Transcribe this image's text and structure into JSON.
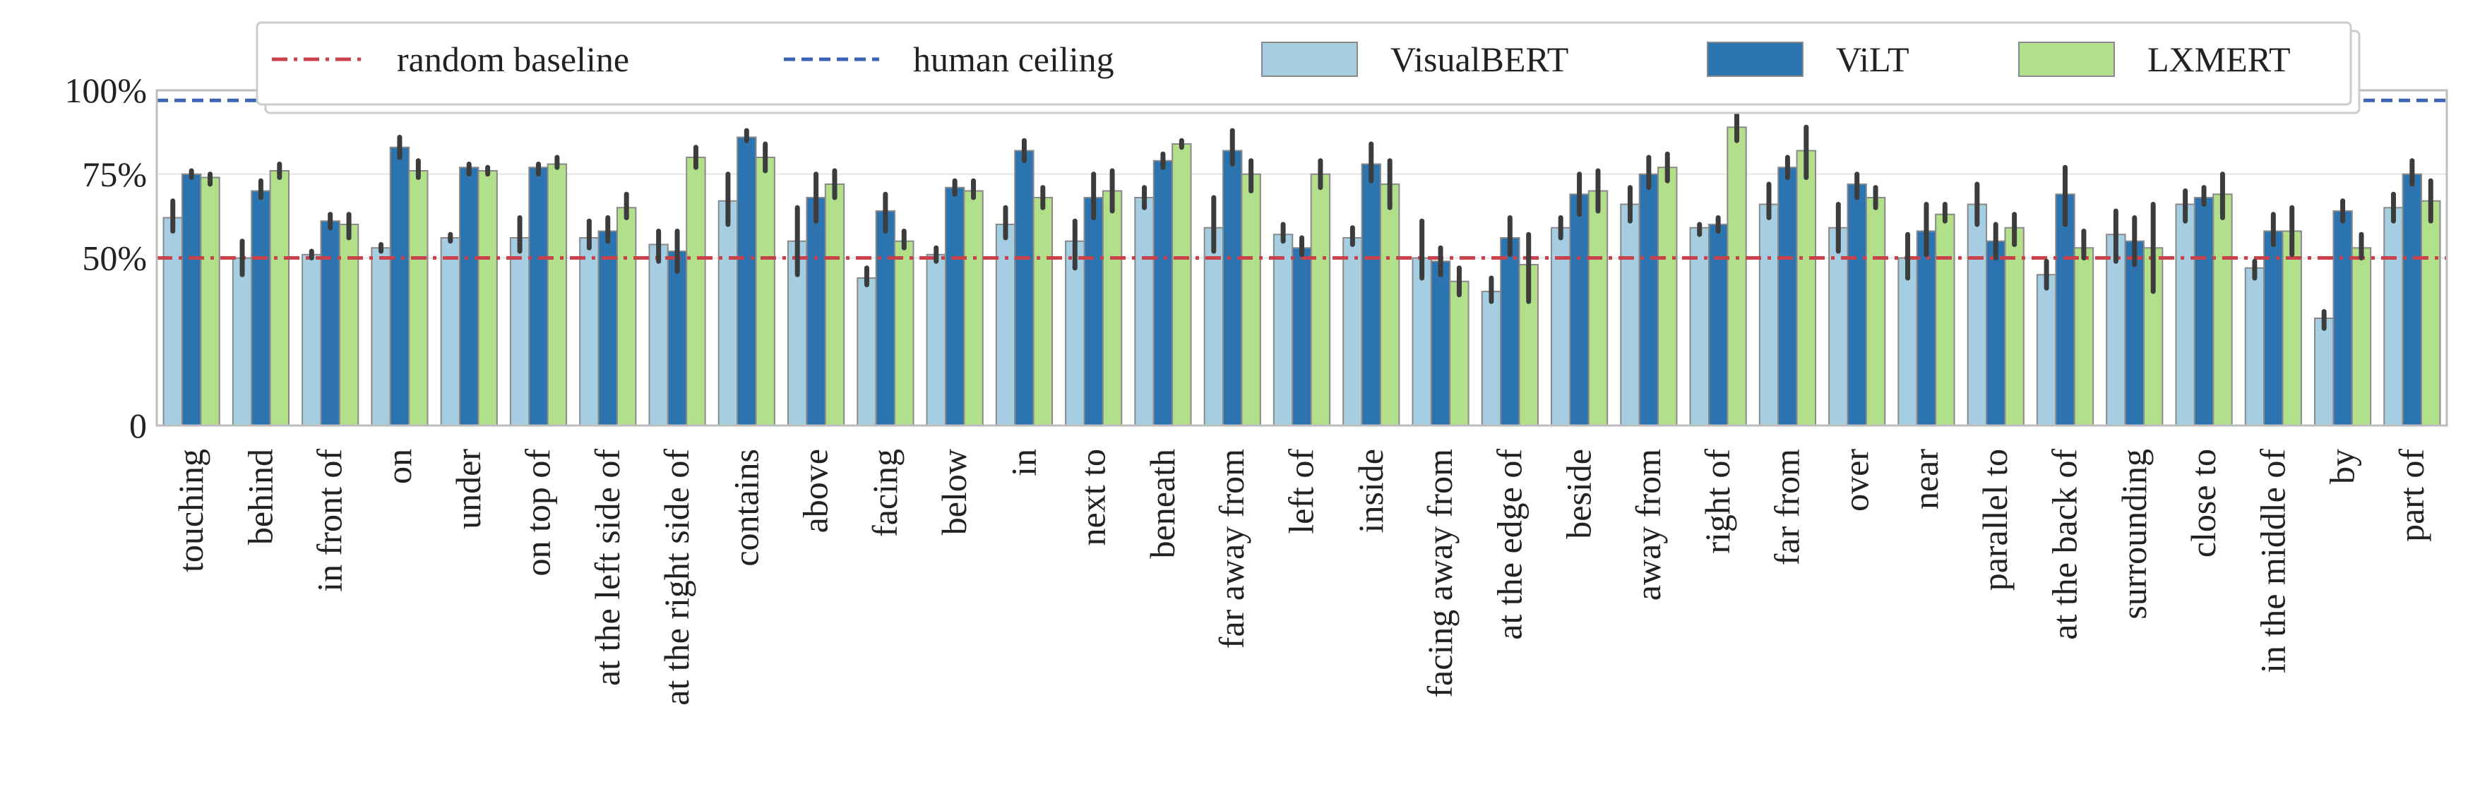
{
  "chart_data": {
    "type": "bar",
    "ylim": [
      0,
      100
    ],
    "yticks": [
      {
        "value": 0,
        "label": "0"
      },
      {
        "value": 50,
        "label": "50%"
      },
      {
        "value": 75,
        "label": "75%"
      },
      {
        "value": 100,
        "label": "100%"
      }
    ],
    "grid": true,
    "legend_position": "top",
    "categories": [
      "touching",
      "behind",
      "in front of",
      "on",
      "under",
      "on top of",
      "at the left side of",
      "at the right side of",
      "contains",
      "above",
      "facing",
      "below",
      "in",
      "next to",
      "beneath",
      "far away from",
      "left of",
      "inside",
      "facing away from",
      "at the edge of",
      "beside",
      "away from",
      "right of",
      "far from",
      "over",
      "near",
      "parallel to",
      "at the back of",
      "surrounding",
      "close to",
      "in the middle of",
      "by",
      "part of"
    ],
    "series": [
      {
        "name": "VisualBERT",
        "color": "#a6cee3",
        "values": [
          62,
          50,
          51,
          53,
          56,
          56,
          56,
          54,
          67,
          55,
          44,
          51,
          60,
          55,
          68,
          59,
          57,
          56,
          50,
          40,
          59,
          66,
          59,
          66,
          59,
          50,
          66,
          45,
          57,
          66,
          47,
          32,
          65
        ],
        "error_low": [
          58,
          45,
          50,
          52,
          55,
          52,
          53,
          49,
          60,
          45,
          42,
          49,
          56,
          47,
          65,
          52,
          55,
          54,
          44,
          37,
          56,
          61,
          57,
          62,
          52,
          44,
          60,
          41,
          49,
          61,
          44,
          29,
          61
        ],
        "error_high": [
          67,
          55,
          52,
          54,
          57,
          62,
          61,
          58,
          75,
          65,
          47,
          53,
          65,
          61,
          71,
          68,
          60,
          59,
          61,
          44,
          62,
          71,
          60,
          72,
          66,
          57,
          72,
          49,
          64,
          70,
          49,
          34,
          69
        ]
      },
      {
        "name": "ViLT",
        "color": "#2b74b0",
        "values": [
          75,
          70,
          61,
          83,
          77,
          77,
          58,
          52,
          86,
          68,
          64,
          71,
          82,
          68,
          79,
          82,
          53,
          78,
          49,
          56,
          69,
          75,
          60,
          77,
          72,
          58,
          55,
          69,
          55,
          68,
          58,
          64,
          75
        ],
        "error_low": [
          74,
          68,
          59,
          80,
          75,
          75,
          55,
          46,
          85,
          61,
          58,
          69,
          79,
          62,
          77,
          78,
          51,
          73,
          45,
          51,
          63,
          71,
          58,
          74,
          68,
          51,
          50,
          60,
          48,
          66,
          54,
          61,
          72
        ],
        "error_high": [
          76,
          73,
          63,
          86,
          78,
          78,
          62,
          58,
          88,
          75,
          69,
          73,
          85,
          75,
          81,
          88,
          56,
          84,
          53,
          62,
          75,
          80,
          62,
          80,
          75,
          66,
          60,
          77,
          62,
          71,
          63,
          67,
          79
        ]
      },
      {
        "name": "LXMERT",
        "color": "#b2df8a",
        "values": [
          74,
          76,
          60,
          76,
          76,
          78,
          65,
          80,
          80,
          72,
          55,
          70,
          68,
          70,
          84,
          75,
          75,
          72,
          43,
          48,
          70,
          77,
          89,
          82,
          68,
          63,
          59,
          53,
          53,
          69,
          58,
          53,
          67
        ],
        "error_low": [
          72,
          74,
          56,
          74,
          75,
          77,
          62,
          77,
          76,
          68,
          53,
          68,
          65,
          64,
          83,
          70,
          71,
          65,
          39,
          37,
          64,
          73,
          85,
          74,
          65,
          61,
          54,
          50,
          40,
          62,
          51,
          50,
          61
        ],
        "error_high": [
          75,
          78,
          63,
          79,
          77,
          80,
          69,
          83,
          84,
          76,
          58,
          73,
          71,
          76,
          85,
          79,
          79,
          79,
          47,
          57,
          76,
          81,
          94,
          89,
          71,
          66,
          63,
          58,
          66,
          75,
          65,
          57,
          73
        ]
      }
    ],
    "reference_lines": [
      {
        "name": "random baseline",
        "value": 50,
        "color": "#c8414b",
        "style": "dashdot"
      },
      {
        "name": "human ceiling",
        "value": 97,
        "color": "#3b64b4",
        "style": "dashed"
      }
    ]
  }
}
